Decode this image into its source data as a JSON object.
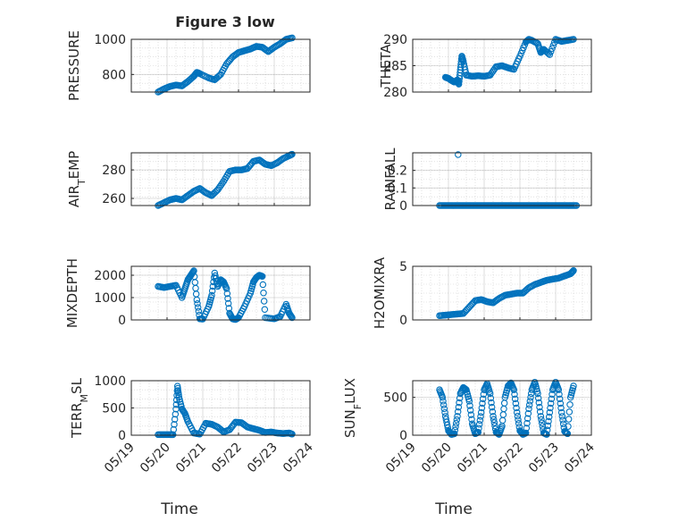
{
  "figure": {
    "title": "Figure 3 low"
  },
  "style": {
    "marker_color": "#0072BD",
    "axis_color": "#262626",
    "grid_color": "#b0b0b0"
  },
  "chart_data": [
    {
      "type": "scatter",
      "ylabel": "PRESSURE",
      "ylabel_sub": "",
      "ylabel_post": "",
      "xlim": [
        "05/19",
        "05/24"
      ],
      "ylim": [
        700,
        1000
      ],
      "yticks": [
        800,
        1000
      ],
      "x": [
        "05/19 18:00",
        "05/19 22:00",
        "05/20 02:00",
        "05/20 06:00",
        "05/20 10:00",
        "05/20 14:00",
        "05/20 18:00",
        "05/20 20:00",
        "05/20 22:00",
        "05/21 04:00",
        "05/21 08:00",
        "05/21 12:00",
        "05/21 16:00",
        "05/21 20:00",
        "05/22 00:00",
        "05/22 04:00",
        "05/22 08:00",
        "05/22 12:00",
        "05/22 16:00",
        "05/22 20:00",
        "05/23 00:00",
        "05/23 04:00",
        "05/23 08:00",
        "05/23 12:00"
      ],
      "y": [
        700,
        718,
        732,
        740,
        735,
        760,
        790,
        812,
        805,
        780,
        770,
        800,
        860,
        900,
        925,
        935,
        945,
        960,
        955,
        930,
        955,
        975,
        1000,
        1008
      ]
    },
    {
      "type": "scatter",
      "ylabel": "THETA",
      "ylabel_sub": "",
      "ylabel_post": "",
      "xlim": [
        "05/19",
        "05/24"
      ],
      "ylim": [
        280,
        290
      ],
      "yticks": [
        280,
        285,
        290
      ],
      "x": [
        "05/19 22:00",
        "05/20 00:00",
        "05/20 02:00",
        "05/20 04:00",
        "05/20 06:00",
        "05/20 07:00",
        "05/20 08:00",
        "05/20 09:00",
        "05/20 10:00",
        "05/20 12:00",
        "05/20 16:00",
        "05/20 20:00",
        "05/21 00:00",
        "05/21 04:00",
        "05/21 08:00",
        "05/21 12:00",
        "05/21 16:00",
        "05/21 20:00",
        "05/22 00:00",
        "05/22 04:00",
        "05/22 06:00",
        "05/22 08:00",
        "05/22 12:00",
        "05/22 14:00",
        "05/22 16:00",
        "05/22 20:00",
        "05/23 00:00",
        "05/23 04:00",
        "05/23 08:00",
        "05/23 12:00"
      ],
      "y": [
        282.8,
        282.6,
        282.2,
        281.9,
        282.3,
        281.5,
        284.2,
        286.8,
        285.8,
        283.2,
        283.0,
        283.1,
        283.0,
        283.2,
        284.8,
        285.0,
        284.6,
        284.3,
        286.8,
        289.5,
        290.0,
        289.8,
        289.2,
        287.5,
        288.1,
        287.1,
        290.0,
        289.6,
        289.8,
        290.0
      ]
    },
    {
      "type": "scatter",
      "ylabel": "AIR",
      "ylabel_sub": "T",
      "ylabel_post": "EMP",
      "xlim": [
        "05/19",
        "05/24"
      ],
      "ylim": [
        255,
        292
      ],
      "yticks": [
        260,
        280
      ],
      "x": [
        "05/19 18:00",
        "05/19 22:00",
        "05/20 02:00",
        "05/20 06:00",
        "05/20 10:00",
        "05/20 14:00",
        "05/20 18:00",
        "05/20 22:00",
        "05/21 02:00",
        "05/21 06:00",
        "05/21 10:00",
        "05/21 14:00",
        "05/21 18:00",
        "05/21 22:00",
        "05/22 02:00",
        "05/22 06:00",
        "05/22 10:00",
        "05/22 14:00",
        "05/22 18:00",
        "05/22 22:00",
        "05/23 02:00",
        "05/23 06:00",
        "05/23 10:00",
        "05/23 12:00"
      ],
      "y": [
        255,
        257,
        259,
        260,
        259,
        262,
        265,
        267,
        264,
        262,
        266,
        272,
        279,
        280,
        280,
        281,
        286,
        287,
        284,
        283,
        285,
        288,
        290,
        291
      ]
    },
    {
      "type": "scatter",
      "ylabel": "RAINFALL",
      "ylabel_sub": "",
      "ylabel_post": "",
      "xlim": [
        "05/19",
        "05/24"
      ],
      "ylim": [
        0,
        0.3
      ],
      "yticks": [
        0,
        0.1,
        0.2
      ],
      "x": [
        "05/19 18:00",
        "05/19 22:00",
        "05/20 02:00",
        "05/20 06:00",
        "05/20 10:00",
        "05/20 14:00",
        "05/20 18:00",
        "05/20 22:00",
        "05/21 02:00",
        "05/21 06:00",
        "05/21 10:00",
        "05/21 14:00",
        "05/21 18:00",
        "05/21 22:00",
        "05/22 02:00",
        "05/22 06:00",
        "05/22 10:00",
        "05/22 14:00",
        "05/22 18:00",
        "05/22 22:00",
        "05/23 02:00",
        "05/23 06:00",
        "05/23 10:00",
        "05/23 14:00",
        "05/20 06:30"
      ],
      "y": [
        0,
        0,
        0,
        0,
        0,
        0,
        0,
        0,
        0,
        0,
        0,
        0,
        0,
        0,
        0,
        0,
        0,
        0,
        0,
        0,
        0,
        0,
        0,
        0,
        0.29
      ]
    },
    {
      "type": "scatter",
      "ylabel": "MIXDEPTH",
      "ylabel_sub": "",
      "ylabel_post": "",
      "xlim": [
        "05/19",
        "05/24"
      ],
      "ylim": [
        0,
        2400
      ],
      "yticks": [
        0,
        1000,
        2000
      ],
      "x": [
        "05/19 18:00",
        "05/19 22:00",
        "05/20 02:00",
        "05/20 06:00",
        "05/20 10:00",
        "05/20 12:00",
        "05/20 14:00",
        "05/20 16:00",
        "05/20 18:00",
        "05/20 20:00",
        "05/20 22:00",
        "05/21 00:00",
        "05/21 04:00",
        "05/21 06:00",
        "05/21 08:00",
        "05/21 10:00",
        "05/21 12:00",
        "05/21 14:00",
        "05/21 16:00",
        "05/21 18:00",
        "05/21 20:00",
        "05/21 22:00",
        "05/22 00:00",
        "05/22 04:00",
        "05/22 08:00",
        "05/22 10:00",
        "05/22 12:00",
        "05/22 14:00",
        "05/22 16:00",
        "05/22 18:00",
        "05/23 00:00",
        "05/23 04:00",
        "05/23 08:00",
        "05/23 10:00",
        "05/23 12:00"
      ],
      "y": [
        1500,
        1450,
        1500,
        1550,
        1000,
        1400,
        1800,
        2000,
        2200,
        900,
        50,
        40,
        600,
        1100,
        2100,
        1500,
        1800,
        1700,
        1400,
        300,
        50,
        20,
        100,
        600,
        1200,
        1700,
        1900,
        2000,
        1950,
        100,
        50,
        150,
        700,
        300,
        100
      ]
    },
    {
      "type": "scatter",
      "ylabel": "H2OMIXRA",
      "ylabel_sub": "",
      "ylabel_post": "",
      "xlim": [
        "05/19",
        "05/24"
      ],
      "ylim": [
        0,
        5
      ],
      "yticks": [
        0,
        5
      ],
      "x": [
        "05/19 18:00",
        "05/19 22:00",
        "05/20 02:00",
        "05/20 06:00",
        "05/20 10:00",
        "05/20 14:00",
        "05/20 18:00",
        "05/20 22:00",
        "05/21 02:00",
        "05/21 06:00",
        "05/21 10:00",
        "05/21 14:00",
        "05/21 18:00",
        "05/21 22:00",
        "05/22 02:00",
        "05/22 06:00",
        "05/22 10:00",
        "05/22 14:00",
        "05/22 18:00",
        "05/22 22:00",
        "05/23 02:00",
        "05/23 06:00",
        "05/23 10:00",
        "05/23 12:00"
      ],
      "y": [
        0.4,
        0.45,
        0.5,
        0.55,
        0.6,
        1.2,
        1.8,
        1.9,
        1.7,
        1.6,
        2.0,
        2.3,
        2.4,
        2.5,
        2.5,
        3.0,
        3.3,
        3.5,
        3.7,
        3.8,
        3.9,
        4.1,
        4.3,
        4.6
      ]
    },
    {
      "type": "scatter",
      "ylabel": "TERR",
      "ylabel_sub": "M",
      "ylabel_post": "SL",
      "xlim": [
        "05/19",
        "05/24"
      ],
      "ylim": [
        0,
        1000
      ],
      "yticks": [
        0,
        500,
        1000
      ],
      "x": [
        "05/19 18:00",
        "05/19 22:00",
        "05/20 02:00",
        "05/20 04:00",
        "05/20 06:00",
        "05/20 07:00",
        "05/20 08:00",
        "05/20 10:00",
        "05/20 12:00",
        "05/20 14:00",
        "05/20 18:00",
        "05/20 22:00",
        "05/21 02:00",
        "05/21 06:00",
        "05/21 10:00",
        "05/21 14:00",
        "05/21 18:00",
        "05/21 22:00",
        "05/22 02:00",
        "05/22 06:00",
        "05/22 10:00",
        "05/22 14:00",
        "05/22 18:00",
        "05/22 22:00",
        "05/23 02:00",
        "05/23 06:00",
        "05/23 10:00",
        "05/23 12:00"
      ],
      "y": [
        10,
        10,
        10,
        10,
        480,
        900,
        700,
        480,
        400,
        250,
        40,
        20,
        220,
        200,
        150,
        60,
        100,
        240,
        230,
        150,
        120,
        90,
        50,
        60,
        40,
        30,
        40,
        20
      ]
    },
    {
      "type": "scatter",
      "ylabel": "SUN",
      "ylabel_sub": "F",
      "ylabel_post": "LUX",
      "xlim": [
        "05/19",
        "05/24"
      ],
      "ylim": [
        0,
        720
      ],
      "yticks": [
        0,
        500
      ],
      "x": [
        "05/19 18:00",
        "05/19 20:00",
        "05/19 22:00",
        "05/20 00:00",
        "05/20 02:00",
        "05/20 04:00",
        "05/20 06:00",
        "05/20 08:00",
        "05/20 10:00",
        "05/20 12:00",
        "05/20 14:00",
        "05/20 16:00",
        "05/20 18:00",
        "05/20 20:00",
        "05/20 22:00",
        "05/21 00:00",
        "05/21 02:00",
        "05/21 04:00",
        "05/21 06:00",
        "05/21 08:00",
        "05/21 10:00",
        "05/21 12:00",
        "05/21 14:00",
        "05/21 16:00",
        "05/21 18:00",
        "05/21 20:00",
        "05/21 22:00",
        "05/22 00:00",
        "05/22 02:00",
        "05/22 04:00",
        "05/22 06:00",
        "05/22 08:00",
        "05/22 10:00",
        "05/22 12:00",
        "05/22 14:00",
        "05/22 16:00",
        "05/22 18:00",
        "05/22 20:00",
        "05/22 22:00",
        "05/23 00:00",
        "05/23 02:00",
        "05/23 04:00",
        "05/23 06:00",
        "05/23 08:00",
        "05/23 10:00",
        "05/23 12:00"
      ],
      "y": [
        600,
        500,
        250,
        60,
        10,
        20,
        250,
        550,
        630,
        600,
        450,
        150,
        20,
        40,
        300,
        600,
        680,
        550,
        250,
        40,
        10,
        120,
        500,
        650,
        690,
        600,
        300,
        60,
        10,
        30,
        350,
        600,
        700,
        550,
        250,
        30,
        10,
        300,
        600,
        700,
        600,
        300,
        50,
        20,
        500,
        650
      ]
    }
  ],
  "axes": {
    "xlabel": "Time",
    "xticklabels": [
      "05/19",
      "05/20",
      "05/21",
      "05/22",
      "05/23",
      "05/24"
    ]
  }
}
